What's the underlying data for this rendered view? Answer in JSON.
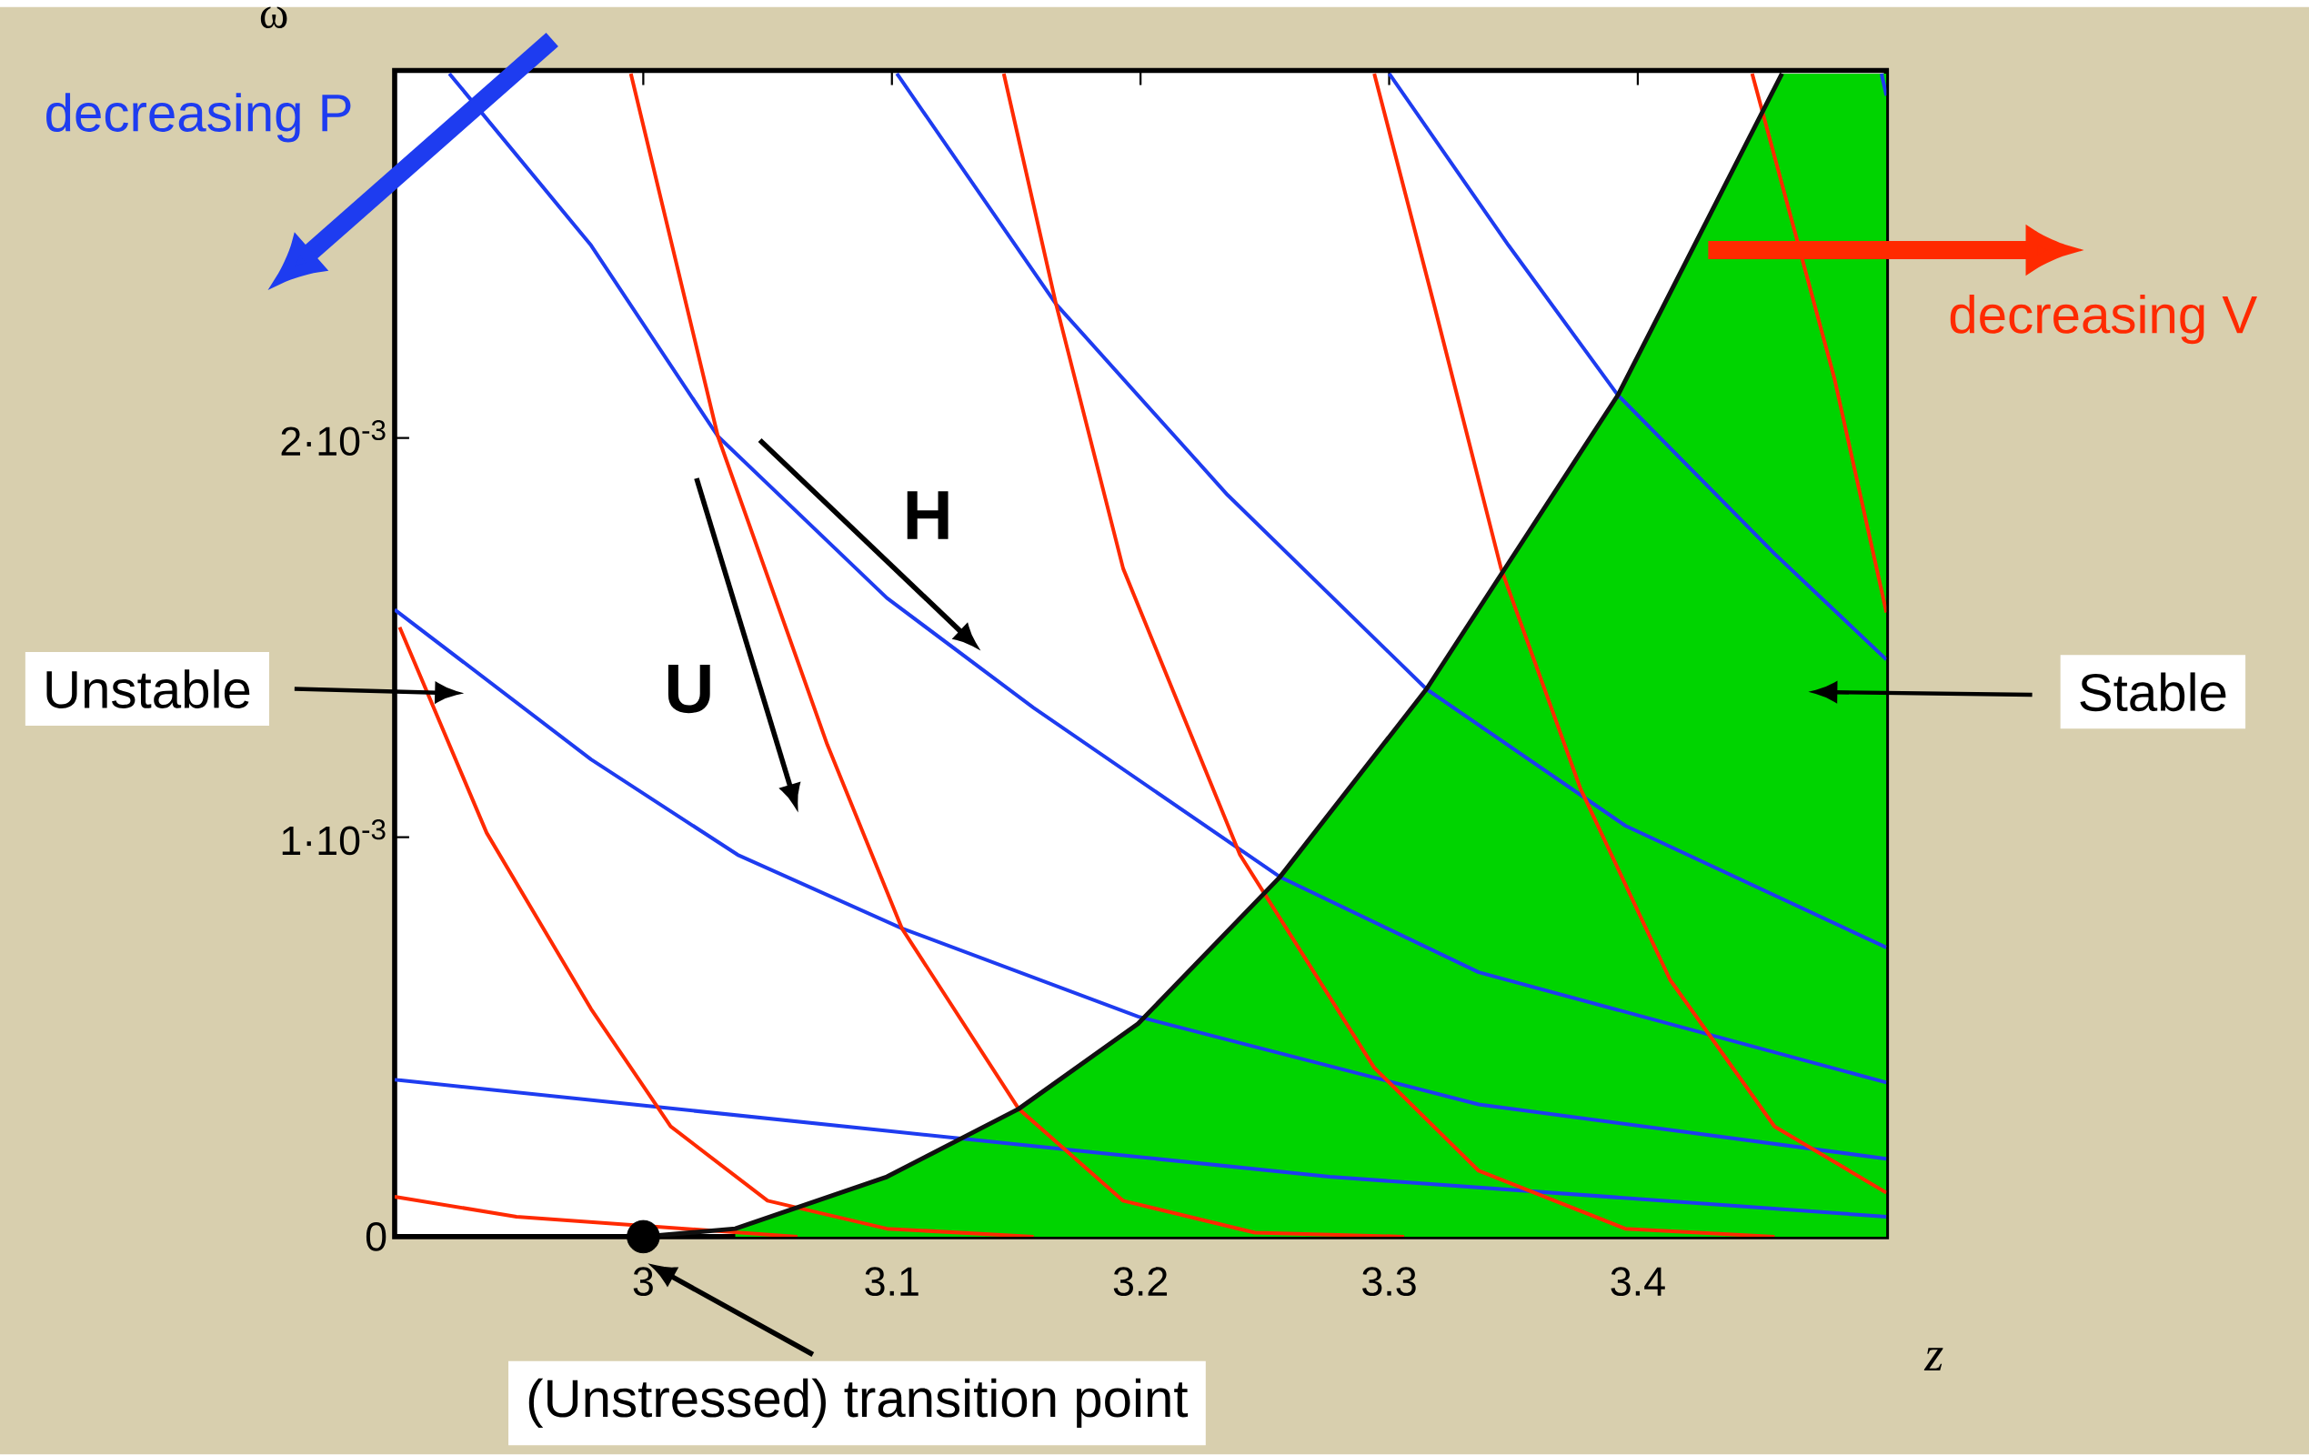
{
  "chart_data": {
    "type": "line",
    "xlabel": "z",
    "ylabel": "ω",
    "xlim": [
      2.9,
      3.5
    ],
    "ylim": [
      0,
      0.00292
    ],
    "xticks": [
      3,
      3.1,
      3.2,
      3.3,
      3.4
    ],
    "yticks": [
      {
        "value": 0,
        "label": "0"
      },
      {
        "value": 0.001,
        "label": "1·10$^{-3}$"
      },
      {
        "value": 0.002,
        "label": "2·10$^{-3}$"
      }
    ],
    "grid": false,
    "series": [
      {
        "type": "area",
        "color": "#00d400",
        "x": [
          3.037,
          3.098,
          3.151,
          3.199,
          3.256,
          3.315,
          3.392,
          3.458,
          3.5
        ],
        "values": [
          2e-05,
          0.00015,
          0.00032,
          0.000533,
          0.0009,
          0.001371,
          0.002107,
          0.002912,
          0.002912
        ]
      },
      {
        "color": "#1e3cf0",
        "x": [
          2.9,
          2.996,
          3.098,
          3.276,
          3.5
        ],
        "values": [
          0.000393,
          0.000331,
          0.000265,
          0.00015,
          5e-05
        ]
      },
      {
        "color": "#1e3cf0",
        "x": [
          2.9,
          2.979,
          3.038,
          3.104,
          3.199,
          3.336,
          3.5
        ],
        "values": [
          0.00157,
          0.001195,
          0.000956,
          0.000772,
          0.000551,
          0.000331,
          0.000195
        ]
      },
      {
        "color": "#1e3cf0",
        "x": [
          2.922,
          2.979,
          3.03,
          3.098,
          3.157,
          3.256,
          3.336,
          3.5
        ],
        "values": [
          0.002912,
          0.002482,
          0.002004,
          0.001599,
          0.001324,
          0.000901,
          0.000662,
          0.000386
        ]
      },
      {
        "color": "#1e3cf0",
        "x": [
          3.102,
          3.166,
          3.235,
          3.315,
          3.395,
          3.5
        ],
        "values": [
          0.002912,
          0.002335,
          0.001857,
          0.001371,
          0.001029,
          0.000724
        ]
      },
      {
        "color": "#1e3cf0",
        "x": [
          3.3,
          3.348,
          3.392,
          3.455,
          3.5
        ],
        "values": [
          0.002912,
          0.002482,
          0.002107,
          0.00171,
          0.001445
        ]
      },
      {
        "color": "#1e3cf0",
        "x": [
          3.498,
          3.5
        ],
        "values": [
          0.002912,
          0.002857
        ]
      },
      {
        "color": "#ff2a00",
        "x": [
          2.9,
          2.949,
          3.0,
          3.062
        ],
        "values": [
          0.0001,
          5e-05,
          null,
          0
        ]
      },
      {
        "color": "#ff2a00",
        "x": [
          2.902,
          2.937,
          2.979,
          3.011,
          3.05,
          3.098,
          3.157
        ],
        "values": [
          0.001526,
          0.001011,
          0.00057,
          0.000276,
          9e-05,
          2e-05,
          0
        ]
      },
      {
        "color": "#ff2a00",
        "x": [
          2.995,
          3.03,
          3.074,
          3.104,
          3.151,
          3.193,
          3.246,
          3.306
        ],
        "values": [
          0.002912,
          0.002004,
          0.001232,
          0.000772,
          0.00032,
          9e-05,
          1e-05,
          0
        ]
      },
      {
        "color": "#ff2a00",
        "x": [
          3.145,
          3.166,
          3.193,
          3.24,
          3.294,
          3.336,
          3.395,
          3.455
        ],
        "values": [
          0.002912,
          0.002335,
          0.001673,
          0.000956,
          0.000423,
          0.000165,
          2e-05,
          0
        ]
      },
      {
        "color": "#ff2a00",
        "x": [
          3.294,
          3.318,
          3.345,
          3.377,
          3.413,
          3.455,
          3.5
        ],
        "values": [
          0.002912,
          0.002335,
          0.001673,
          0.001121,
          0.000643,
          0.000276,
          0.00011
        ]
      },
      {
        "color": "#ff2a00",
        "x": [
          3.446,
          3.479,
          3.5
        ],
        "values": [
          0.002912,
          0.002151,
          0.001563
        ]
      },
      {
        "color": "#101010",
        "x": [
          3.0,
          3.037,
          3.098,
          3.151,
          3.199,
          3.256,
          3.315,
          3.392,
          3.458
        ],
        "values": [
          0,
          2e-05,
          0.00015,
          0.00032,
          0.000533,
          0.0009,
          0.001371,
          0.002107,
          0.002912
        ]
      },
      {
        "type": "scatter",
        "color": "#000000",
        "x": [
          3.0
        ],
        "values": [
          0
        ]
      }
    ],
    "annotations": [
      "decreasing P",
      "decreasing V",
      "Unstable",
      "Stable",
      "H",
      "U",
      {
        "text": "(Unstressed) transition point",
        "x": 3.0,
        "y": 0
      }
    ]
  }
}
